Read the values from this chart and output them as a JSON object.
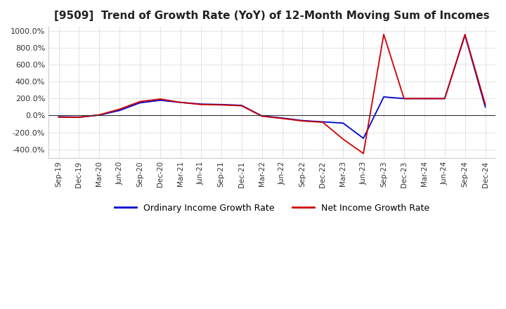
{
  "title": "[9509]  Trend of Growth Rate (YoY) of 12-Month Moving Sum of Incomes",
  "title_fontsize": 11,
  "ylim": [
    -500,
    1050
  ],
  "yticks": [
    -400,
    -200,
    0,
    200,
    400,
    600,
    800,
    1000
  ],
  "background_color": "#ffffff",
  "plot_bg_color": "#ffffff",
  "grid_color": "#aaaaaa",
  "legend_labels": [
    "Ordinary Income Growth Rate",
    "Net Income Growth Rate"
  ],
  "legend_colors": [
    "#0000cc",
    "#cc0000"
  ],
  "x_labels": [
    "Sep-19",
    "Dec-19",
    "Mar-20",
    "Jun-20",
    "Sep-20",
    "Dec-20",
    "Mar-21",
    "Jun-21",
    "Sep-21",
    "Dec-21",
    "Mar-22",
    "Jun-22",
    "Sep-22",
    "Dec-22",
    "Mar-23",
    "Jun-23",
    "Sep-23",
    "Dec-23",
    "Mar-24",
    "Jun-24",
    "Sep-24",
    "Dec-24"
  ],
  "ordinary_income": [
    -15,
    -20,
    5,
    60,
    150,
    180,
    155,
    135,
    130,
    120,
    -5,
    -30,
    -60,
    -75,
    -90,
    -270,
    220,
    200,
    200,
    200,
    950,
    100
  ],
  "net_income": [
    -20,
    -22,
    8,
    75,
    165,
    195,
    155,
    130,
    125,
    115,
    -8,
    -35,
    -65,
    -80,
    -280,
    -450,
    960,
    200,
    200,
    200,
    960,
    130
  ]
}
